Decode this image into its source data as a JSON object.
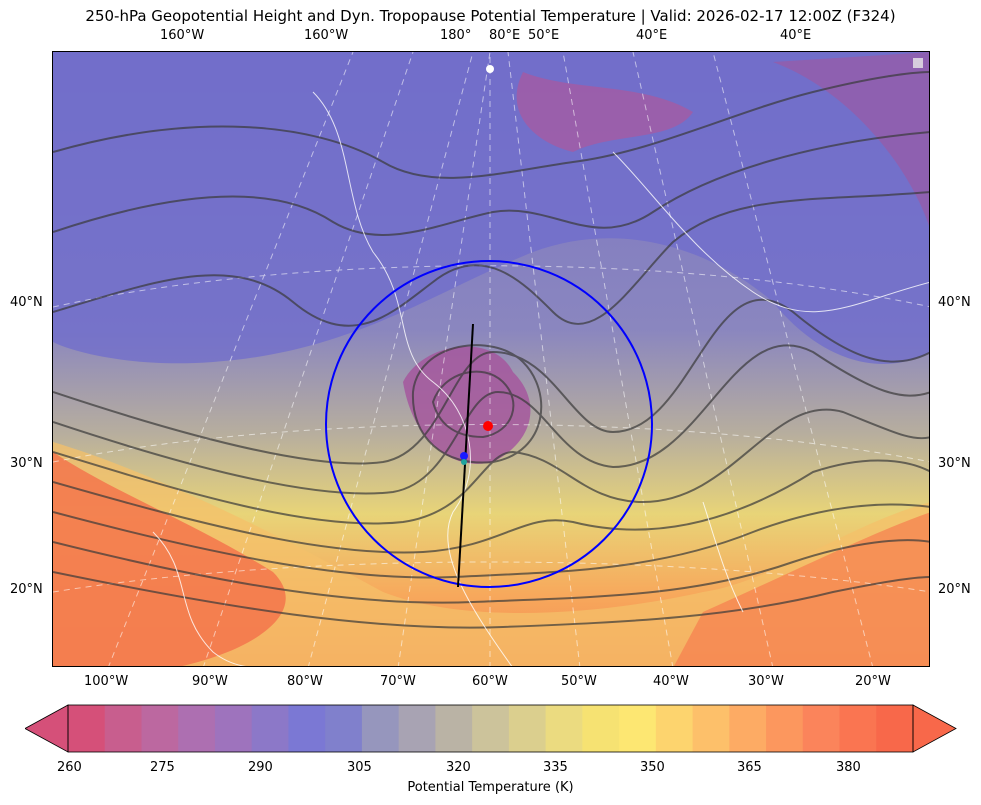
{
  "title": "250-hPa Geopotential Height and Dyn. Tropopause Potential Temperature   |  Valid: 2026-02-17 12:00Z (F324)",
  "top_lon_labels": [
    "160°W",
    "160°W",
    "180°",
    "80°E",
    "50°E",
    "40°E",
    "40°E"
  ],
  "bottom_lon_labels": [
    "100°W",
    "90°W",
    "80°W",
    "70°W",
    "60°W",
    "50°W",
    "40°W",
    "30°W",
    "20°W"
  ],
  "left_lat_labels": [
    "40°N",
    "30°N",
    "20°N"
  ],
  "right_lat_labels": [
    "40°N",
    "30°N",
    "20°N"
  ],
  "colorbar": {
    "label": "Potential Temperature (K)",
    "ticks": [
      "260",
      "275",
      "290",
      "305",
      "320",
      "335",
      "350",
      "365",
      "380"
    ],
    "range": [
      260,
      390
    ],
    "colors": [
      "#d55079",
      "#c85e8e",
      "#bc68a0",
      "#ad6fb1",
      "#9e73bd",
      "#8c78c8",
      "#7b78d4",
      "#8080cc",
      "#9696bd",
      "#a8a3b3",
      "#bab3a5",
      "#ccc39b",
      "#dbcf8e",
      "#ebdb80",
      "#f6e272",
      "#fde772",
      "#fdd46e",
      "#fdc06a",
      "#fdab64",
      "#fc975e",
      "#fb845b",
      "#fa7551",
      "#f8684a"
    ]
  },
  "overlays": {
    "circle_color": "#0000ff",
    "cross_section_color": "#000000",
    "point_colors": [
      "#ff0000",
      "#1a1aff",
      "#20a39e"
    ]
  }
}
